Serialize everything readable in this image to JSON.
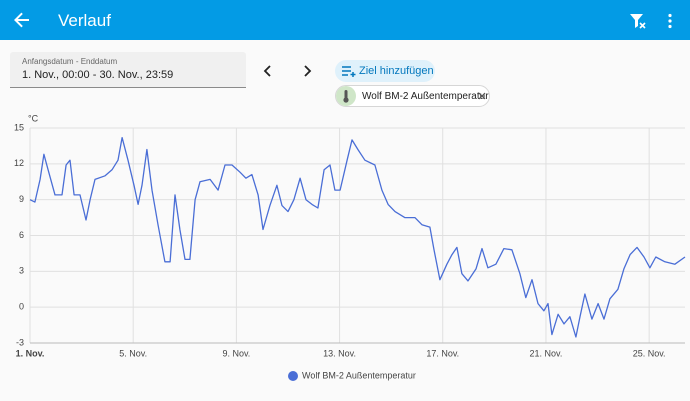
{
  "header": {
    "title": "Verlauf"
  },
  "date_range": {
    "label": "Anfangsdatum - Enddatum",
    "value": "1. Nov., 00:00 - 30. Nov., 23:59"
  },
  "add_target": "Ziel hinzufügen",
  "target_chip": "Wolf BM-2 Außentemperatur",
  "chart_data": {
    "type": "line",
    "y_unit": "°C",
    "x": [
      1.0,
      1.19,
      1.39,
      1.54,
      1.7,
      1.97,
      2.24,
      2.4,
      2.55,
      2.71,
      2.94,
      3.17,
      3.33,
      3.52,
      3.91,
      4.18,
      4.41,
      4.57,
      4.8,
      5.03,
      5.19,
      5.34,
      5.53,
      5.73,
      5.96,
      6.23,
      6.43,
      6.62,
      6.81,
      7.01,
      7.2,
      7.4,
      7.59,
      7.98,
      8.29,
      8.56,
      8.83,
      9.14,
      9.37,
      9.6,
      9.84,
      10.03,
      10.3,
      10.57,
      10.77,
      11.0,
      11.23,
      11.47,
      11.7,
      11.93,
      12.16,
      12.4,
      12.63,
      12.82,
      13.02,
      13.29,
      13.48,
      13.71,
      13.98,
      14.37,
      14.64,
      14.88,
      15.15,
      15.53,
      15.92,
      16.19,
      16.5,
      16.66,
      16.89,
      17.16,
      17.36,
      17.55,
      17.74,
      17.98,
      18.29,
      18.52,
      18.75,
      19.06,
      19.37,
      19.68,
      19.99,
      20.22,
      20.46,
      20.69,
      20.92,
      21.08,
      21.23,
      21.47,
      21.7,
      21.93,
      22.16,
      22.32,
      22.51,
      22.78,
      23.02,
      23.25,
      23.48,
      23.79,
      24.02,
      24.26,
      24.53,
      24.8,
      25.03,
      25.26,
      25.61,
      26.0,
      26.39
    ],
    "series": [
      {
        "name": "Wolf BM-2 Außentemperatur",
        "color": "#4a6ed6",
        "values": [
          9,
          8.8,
          10.7,
          12.8,
          11.5,
          9.4,
          9.4,
          11.9,
          12.3,
          9.4,
          9.4,
          7.3,
          9,
          10.7,
          11,
          11.5,
          12.3,
          14.2,
          12.3,
          10.2,
          8.6,
          10.2,
          13.2,
          9.8,
          6.9,
          3.8,
          3.8,
          9.4,
          6.5,
          4,
          4,
          9,
          10.5,
          10.7,
          9.8,
          11.9,
          11.9,
          11.3,
          10.8,
          11.1,
          9.4,
          6.5,
          8.5,
          10.2,
          8.5,
          8,
          9,
          10.8,
          9,
          8.6,
          8.3,
          11.5,
          11.9,
          9.8,
          9.8,
          12.3,
          14,
          13.2,
          12.3,
          11.9,
          9.8,
          8.6,
          8,
          7.5,
          7.5,
          6.9,
          6.7,
          4.8,
          2.3,
          3.6,
          4.4,
          5,
          2.8,
          2.2,
          3.2,
          4.9,
          3.3,
          3.6,
          4.9,
          4.8,
          2.8,
          0.8,
          2.3,
          0.3,
          -0.3,
          0.3,
          -2.3,
          -0.6,
          -1.4,
          -0.8,
          -2.5,
          -0.8,
          1.1,
          -1,
          0.3,
          -1,
          0.7,
          1.5,
          3.2,
          4.4,
          5,
          4.2,
          3.3,
          4.2,
          3.8,
          3.6,
          4.2
        ]
      }
    ],
    "xlim": [
      1,
      26.39
    ],
    "xticks": [
      {
        "value": 1,
        "label": "1. Nov."
      },
      {
        "value": 5,
        "label": "5. Nov."
      },
      {
        "value": 9,
        "label": "9. Nov."
      },
      {
        "value": 13,
        "label": "13. Nov."
      },
      {
        "value": 17,
        "label": "17. Nov."
      },
      {
        "value": 21,
        "label": "21. Nov."
      },
      {
        "value": 25,
        "label": "25. Nov."
      }
    ],
    "ylim": [
      -3,
      15
    ],
    "yticks": [
      -3,
      0,
      3,
      6,
      9,
      12,
      15
    ],
    "grid": true
  }
}
